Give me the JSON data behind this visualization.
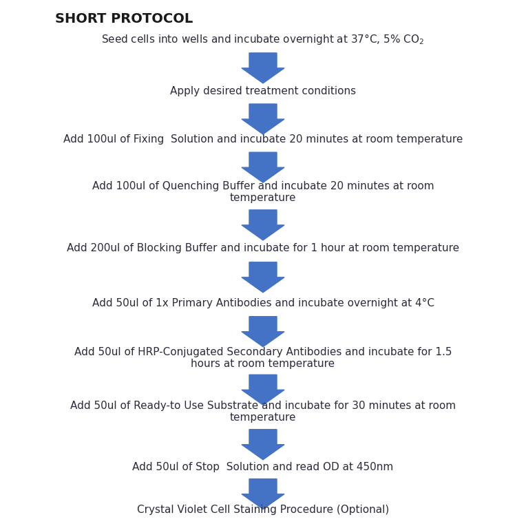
{
  "title": "SHORT PROTOCOL",
  "title_color": "#1a1a1a",
  "arrow_color": "#4472C4",
  "text_color": "#2b2b3b",
  "bg_color": "#ffffff",
  "steps": [
    "Seed cells into wells and incubate overnight at 37°C, 5% CO$_2$",
    "Apply des​ired treatment conditions",
    "Add 100ul of Fixing  Solution and incubate 20 minutes at room temperature",
    "Add 100ul of Quenching Buffer and incubate 20 minutes at room\ntemperature",
    "Add 200ul of Blocking Buffer and incubate for 1 hour at room temperature",
    "Add 50ul of 1x Primary Antibodies and incubate overnight at 4°C",
    "Add 50ul of HRP-Conjugated Secondary Antibodies and incubate for 1.5\nhours at room temperature",
    "Add 50ul of Ready-to Use Substrate and incubate for 30 minutes at room\ntemperature",
    "Add 50ul of Stop  Solution and read OD at 450nm",
    "Crystal Violet Cell Staining Procedure (Optional)"
  ],
  "figsize": [
    7.64,
    7.64
  ],
  "dpi": 100
}
